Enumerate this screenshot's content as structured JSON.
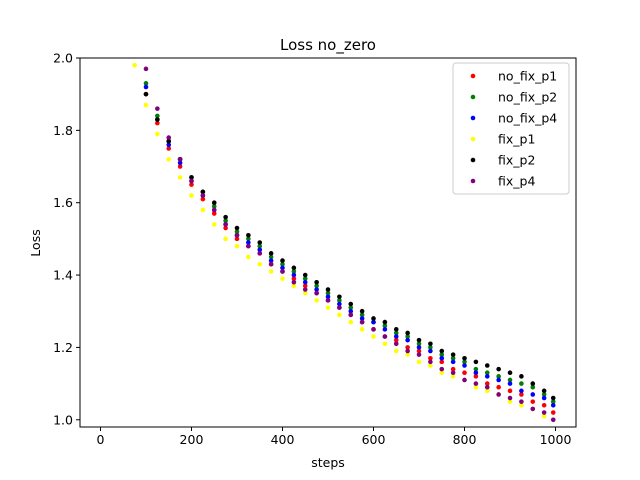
{
  "chart_data": {
    "type": "scatter",
    "title": "Loss no_zero",
    "xlabel": "steps",
    "ylabel": "Loss",
    "xlim": [
      -45,
      1045
    ],
    "ylim": [
      0.98,
      2.0
    ],
    "xticks": [
      0,
      200,
      400,
      600,
      800,
      1000
    ],
    "yticks": [
      1.0,
      1.2,
      1.4,
      1.6,
      1.8,
      2.0
    ],
    "xtick_labels": [
      "0",
      "200",
      "400",
      "600",
      "800",
      "1000"
    ],
    "ytick_labels": [
      "1.0",
      "1.2",
      "1.4",
      "1.6",
      "1.8",
      "2.0"
    ],
    "grid": false,
    "legend_position": "top-right",
    "x": [
      75,
      100,
      125,
      150,
      175,
      200,
      225,
      250,
      275,
      300,
      325,
      350,
      375,
      400,
      425,
      450,
      475,
      500,
      525,
      550,
      575,
      600,
      625,
      650,
      675,
      700,
      725,
      750,
      775,
      800,
      825,
      850,
      875,
      900,
      925,
      950,
      975,
      995
    ],
    "series": [
      {
        "name": "no_fix_p1",
        "color": "#ff0000",
        "values": [
          2.01,
          1.9,
          1.82,
          1.75,
          1.7,
          1.65,
          1.61,
          1.57,
          1.53,
          1.5,
          1.48,
          1.46,
          1.43,
          1.41,
          1.39,
          1.37,
          1.35,
          1.33,
          1.31,
          1.29,
          1.27,
          1.25,
          1.23,
          1.22,
          1.2,
          1.19,
          1.17,
          1.16,
          1.14,
          1.13,
          1.12,
          1.1,
          1.09,
          1.08,
          1.07,
          1.05,
          1.04,
          1.02
        ]
      },
      {
        "name": "no_fix_p2",
        "color": "#008000",
        "values": [
          2.02,
          1.93,
          1.84,
          1.77,
          1.72,
          1.67,
          1.63,
          1.59,
          1.55,
          1.52,
          1.5,
          1.48,
          1.45,
          1.43,
          1.41,
          1.39,
          1.37,
          1.35,
          1.33,
          1.31,
          1.29,
          1.27,
          1.26,
          1.24,
          1.23,
          1.21,
          1.2,
          1.18,
          1.17,
          1.16,
          1.14,
          1.13,
          1.12,
          1.11,
          1.1,
          1.09,
          1.07,
          1.05
        ]
      },
      {
        "name": "no_fix_p4",
        "color": "#0000ff",
        "values": [
          2.01,
          1.92,
          1.83,
          1.76,
          1.71,
          1.66,
          1.62,
          1.58,
          1.54,
          1.51,
          1.49,
          1.47,
          1.44,
          1.42,
          1.4,
          1.38,
          1.36,
          1.34,
          1.32,
          1.3,
          1.28,
          1.27,
          1.25,
          1.23,
          1.22,
          1.2,
          1.19,
          1.17,
          1.16,
          1.15,
          1.13,
          1.12,
          1.11,
          1.1,
          1.08,
          1.07,
          1.06,
          1.04
        ]
      },
      {
        "name": "fix_p1",
        "color": "#ffff00",
        "values": [
          1.98,
          1.87,
          1.79,
          1.72,
          1.67,
          1.62,
          1.58,
          1.54,
          1.5,
          1.48,
          1.45,
          1.43,
          1.41,
          1.39,
          1.37,
          1.35,
          1.33,
          1.31,
          1.29,
          1.27,
          1.25,
          1.23,
          1.21,
          1.19,
          1.18,
          1.16,
          1.15,
          1.13,
          1.12,
          1.11,
          1.09,
          1.08,
          1.07,
          1.05,
          1.04,
          1.03,
          1.01,
          1.0
        ]
      },
      {
        "name": "fix_p2",
        "color": "#000000",
        "values": [
          2.02,
          1.9,
          1.83,
          1.77,
          1.72,
          1.67,
          1.63,
          1.6,
          1.56,
          1.53,
          1.51,
          1.49,
          1.46,
          1.44,
          1.42,
          1.4,
          1.38,
          1.36,
          1.34,
          1.32,
          1.3,
          1.28,
          1.27,
          1.25,
          1.24,
          1.22,
          1.21,
          1.19,
          1.18,
          1.17,
          1.16,
          1.15,
          1.14,
          1.13,
          1.12,
          1.1,
          1.08,
          1.06
        ]
      },
      {
        "name": "fix_p4",
        "color": "#800080",
        "values": [
          2.02,
          1.97,
          1.86,
          1.78,
          1.72,
          1.66,
          1.62,
          1.58,
          1.54,
          1.51,
          1.48,
          1.46,
          1.43,
          1.41,
          1.38,
          1.36,
          1.35,
          1.33,
          1.31,
          1.29,
          1.27,
          1.25,
          1.23,
          1.21,
          1.19,
          1.18,
          1.16,
          1.14,
          1.13,
          1.11,
          1.1,
          1.09,
          1.07,
          1.06,
          1.05,
          1.03,
          1.02,
          1.0
        ]
      }
    ]
  }
}
